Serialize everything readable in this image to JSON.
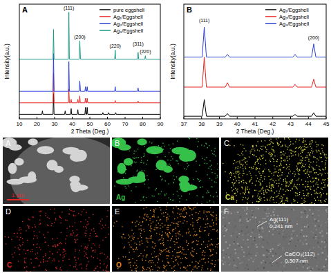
{
  "chart_data": [
    {
      "type": "line",
      "panel": "A",
      "x_label": "2 Theta (Deg.)",
      "y_label": "Intensity(a.u.)",
      "xlim": [
        10,
        90
      ],
      "xticks": [
        10,
        20,
        30,
        40,
        50,
        60,
        70,
        80,
        90
      ],
      "ylim": [
        0,
        100
      ],
      "tick_labels": "x",
      "legend": "top-right",
      "series": [
        {
          "name": "pure eggshell",
          "color": "#000000",
          "x": [
            10,
            22.8,
            23.1,
            23.4,
            29.1,
            29.4,
            29.7,
            35.7,
            36.0,
            36.3,
            39.1,
            39.4,
            39.7,
            42.9,
            43.2,
            43.5,
            47.2,
            47.5,
            47.8,
            48.2,
            48.5,
            48.8,
            57.1,
            57.4,
            57.7,
            60.4,
            60.7,
            61.0,
            64.4,
            64.7,
            65.0,
            90
          ],
          "values": [
            4,
            4,
            7,
            4,
            4,
            22,
            4,
            4,
            7,
            4,
            4,
            9,
            4,
            4,
            8,
            4,
            4,
            10,
            4,
            4,
            10,
            4,
            4,
            5.5,
            4,
            4,
            5.5,
            4,
            4,
            5.5,
            4,
            4
          ]
        },
        {
          "name": "Ag₁/Eggshell",
          "color": "#e8251f",
          "x": [
            10,
            29.1,
            29.4,
            29.7,
            37.8,
            38.1,
            38.4,
            39.1,
            39.4,
            39.7,
            42.9,
            43.2,
            43.5,
            44.0,
            44.3,
            44.6,
            47.2,
            47.5,
            47.8,
            48.2,
            48.5,
            48.8,
            64.1,
            64.4,
            64.7,
            77.1,
            77.4,
            77.7,
            90
          ],
          "values": [
            14,
            14,
            40,
            14,
            14,
            26,
            14,
            14,
            17,
            14,
            14,
            17,
            14,
            14,
            20,
            14,
            14,
            18,
            14,
            14,
            18,
            14,
            14,
            16,
            14,
            14,
            15.5,
            14,
            14
          ]
        },
        {
          "name": "Ag₂/Eggshell",
          "color": "#2b3fd6",
          "x": [
            10,
            29.1,
            29.4,
            29.7,
            37.8,
            38.1,
            38.4,
            43.9,
            44.3,
            44.7,
            47.2,
            47.5,
            47.8,
            48.2,
            48.5,
            48.8,
            64.1,
            64.4,
            64.7,
            77.1,
            77.4,
            77.7,
            90
          ],
          "values": [
            24,
            24,
            57,
            24,
            24,
            50,
            24,
            24,
            33,
            24,
            24,
            28,
            24,
            24,
            28,
            24,
            24,
            28,
            24,
            24,
            27,
            24,
            24
          ]
        },
        {
          "name": "Ag₃/Eggshell",
          "color": "#1a9a8a",
          "x": [
            10,
            29.1,
            29.4,
            29.7,
            37.8,
            38.1,
            38.4,
            43.9,
            44.3,
            44.7,
            64.1,
            64.4,
            64.7,
            77.1,
            77.4,
            77.7,
            81.2,
            81.5,
            81.8,
            90
          ],
          "values": [
            52,
            52,
            78,
            52,
            52,
            93,
            52,
            52,
            68,
            52,
            52,
            60,
            52,
            52,
            58,
            52,
            52,
            55,
            52,
            52
          ]
        }
      ],
      "annotations": [
        {
          "text": "(111)",
          "x": 38.1,
          "y": 95
        },
        {
          "text": "(200)",
          "x": 44.3,
          "y": 70
        },
        {
          "text": "(220)",
          "x": 64.4,
          "y": 62
        },
        {
          "text": "(311)",
          "x": 77.4,
          "y": 64
        },
        {
          "text": "(220)",
          "x": 81.5,
          "y": 57
        }
      ]
    },
    {
      "type": "line",
      "panel": "B",
      "x_label": "2 Theta (Deg.)",
      "y_label": "Intensity(a.u.)",
      "xlim": [
        37,
        45
      ],
      "xticks": [
        37,
        38,
        39,
        40,
        41,
        42,
        43,
        44,
        45
      ],
      "ylim": [
        0,
        130
      ],
      "tick_labels": "x",
      "legend": "top-right",
      "series": [
        {
          "name": "Ag₁/Eggshell",
          "color": "#000000",
          "x": [
            37,
            38.03,
            38.15,
            38.27,
            39.33,
            39.45,
            39.57,
            43.13,
            43.25,
            43.37,
            44.18,
            44.3,
            44.42,
            45
          ],
          "values": [
            3,
            3,
            22,
            3,
            3,
            6,
            3,
            3,
            5,
            3,
            3,
            7,
            3,
            3
          ]
        },
        {
          "name": "Ag₂/Eggshell",
          "color": "#e8251f",
          "x": [
            37,
            38.03,
            38.15,
            38.27,
            39.33,
            39.45,
            39.57,
            43.13,
            43.25,
            43.37,
            44.18,
            44.3,
            44.42,
            45
          ],
          "values": [
            36,
            36,
            70,
            36,
            36,
            41,
            36,
            36,
            39,
            36,
            36,
            45,
            36,
            36
          ]
        },
        {
          "name": "Ag₃/Eggshell",
          "color": "#2b3fd6",
          "x": [
            37,
            38.03,
            38.15,
            38.27,
            39.33,
            39.45,
            39.57,
            43.13,
            43.25,
            43.37,
            44.18,
            44.3,
            44.42,
            45
          ],
          "values": [
            70,
            70,
            104,
            70,
            70,
            73,
            70,
            70,
            73,
            70,
            70,
            85,
            70,
            70
          ]
        }
      ],
      "annotations": [
        {
          "text": "(111)",
          "x": 38.15,
          "y": 110
        },
        {
          "text": "(200)",
          "x": 44.3,
          "y": 90
        }
      ]
    }
  ],
  "images": [
    {
      "panel": "A",
      "scale_bar": "1 μm"
    },
    {
      "panel": "B",
      "element": "Ag",
      "color": "#35c04a"
    },
    {
      "panel": "C",
      "element": "Ca",
      "color": "#d6d43a"
    },
    {
      "panel": "D",
      "element": "C",
      "color": "#e0282a"
    },
    {
      "panel": "E",
      "element": "O",
      "color": "#e88a22"
    },
    {
      "panel": "F",
      "annotations": [
        "Ag(111)",
        "0.241 nm",
        "CaCO₃(112)",
        "0.307 nm"
      ]
    }
  ]
}
